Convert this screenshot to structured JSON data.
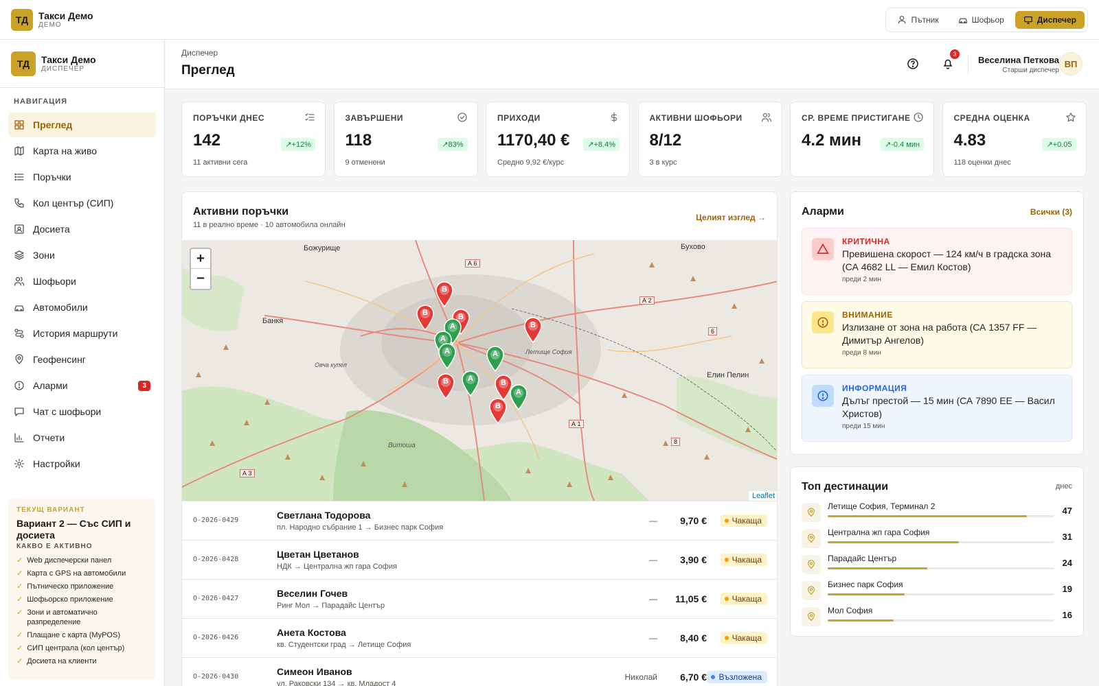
{
  "app": {
    "logo": "ТД",
    "name": "Такси Демо",
    "mode": "ДЕМО"
  },
  "roles": [
    {
      "label": "Пътник",
      "icon": "user-icon"
    },
    {
      "label": "Шофьор",
      "icon": "car-icon"
    },
    {
      "label": "Диспечер",
      "icon": "monitor-icon",
      "active": true
    }
  ],
  "sidebar": {
    "logo": "ТД",
    "name": "Такси Демо",
    "role": "ДИСПЕЧЕР",
    "nav_title": "НАВИГАЦИЯ",
    "items": [
      {
        "label": "Преглед",
        "icon": "grid-icon",
        "active": true
      },
      {
        "label": "Карта на живо",
        "icon": "map-icon"
      },
      {
        "label": "Поръчки",
        "icon": "list-icon"
      },
      {
        "label": "Кол център (СИП)",
        "icon": "phone-icon"
      },
      {
        "label": "Досиета",
        "icon": "id-card-icon"
      },
      {
        "label": "Зони",
        "icon": "layers-icon"
      },
      {
        "label": "Шофьори",
        "icon": "users-icon"
      },
      {
        "label": "Автомобили",
        "icon": "car-icon"
      },
      {
        "label": "История маршрути",
        "icon": "route-icon"
      },
      {
        "label": "Геофенсинг",
        "icon": "pin-icon"
      },
      {
        "label": "Аларми",
        "icon": "alert-circle-icon",
        "badge": "3"
      },
      {
        "label": "Чат с шофьори",
        "icon": "chat-icon"
      },
      {
        "label": "Отчети",
        "icon": "chart-icon"
      },
      {
        "label": "Настройки",
        "icon": "gear-icon"
      }
    ],
    "variant": {
      "label": "ТЕКУЩ ВАРИАНТ",
      "title": "Вариант 2 — Със СИП и досиета",
      "subtitle": "КАКВО Е АКТИВНО",
      "features": [
        "Web диспечерски панел",
        "Карта с GPS на автомобили",
        "Пътническо приложение",
        "Шофьорско приложение",
        "Зони и автоматично разпределение",
        "Плащане с карта (MyPOS)",
        "СИП централа (кол център)",
        "Досиета на клиенти"
      ]
    }
  },
  "header": {
    "breadcrumb": "Диспечер",
    "title": "Преглед",
    "notifications": "3",
    "user_name": "Веселина Петкова",
    "user_role": "Старши диспечер",
    "avatar": "ВП"
  },
  "kpis": [
    {
      "title": "ПОРЪЧКИ ДНЕС",
      "value": "142",
      "delta": "+12%",
      "sub": "11 активни сега",
      "icon": "list-check-icon"
    },
    {
      "title": "ЗАВЪРШЕНИ",
      "value": "118",
      "delta": "83%",
      "sub": "9 отменени",
      "icon": "check-circle-icon"
    },
    {
      "title": "ПРИХОДИ",
      "value": "1170,40 €",
      "delta": "+8.4%",
      "sub": "Средно 9,92 €/курс",
      "icon": "dollar-icon"
    },
    {
      "title": "АКТИВНИ ШОФЬОРИ",
      "value": "8/12",
      "delta": "",
      "sub": "3 в курс",
      "icon": "users-icon"
    },
    {
      "title": "СР. ВРЕМЕ ПРИСТИГАНЕ",
      "value": "4.2 мин",
      "delta": "-0.4 мин",
      "sub": "",
      "icon": "clock-icon"
    },
    {
      "title": "СРЕДНА ОЦЕНКА",
      "value": "4.83",
      "delta": "+0.05",
      "sub": "118 оценки днес",
      "icon": "star-icon"
    }
  ],
  "orders": {
    "title": "Активни поръчки",
    "subtitle": "11 в реално време · 10 автомобила онлайн",
    "link": "Целият изглед →",
    "map": {
      "zoom_in": "+",
      "zoom_out": "−",
      "attribution": "Leaflet",
      "labels": [
        "Божурище",
        "Бухово",
        "Банкя",
        "Елин Пелин",
        "Летище София",
        "Витоша",
        "Овча купел",
        "А 6",
        "А 2",
        "А 1",
        "А 3",
        "6",
        "8"
      ],
      "markers_b": [
        "B",
        "B",
        "B",
        "B",
        "B",
        "B",
        "B"
      ],
      "markers_a": [
        "A",
        "A",
        "A",
        "A",
        "A",
        "A"
      ]
    },
    "rows": [
      {
        "id": "O-2026-0429",
        "name": "Светлана Тодорова",
        "route": "пл. Народно събрание 1 → Бизнес парк София",
        "driver": "—",
        "price": "9,70 €",
        "status": "Чакаща",
        "kind": "wait"
      },
      {
        "id": "O-2026-0428",
        "name": "Цветан Цветанов",
        "route": "НДК → Централна жп гара София",
        "driver": "—",
        "price": "3,90 €",
        "status": "Чакаща",
        "kind": "wait"
      },
      {
        "id": "O-2026-0427",
        "name": "Веселин Гочев",
        "route": "Ринг Мол → Парадайс Център",
        "driver": "—",
        "price": "11,05 €",
        "status": "Чакаща",
        "kind": "wait"
      },
      {
        "id": "O-2026-0426",
        "name": "Анета Костова",
        "route": "кв. Студентски град → Летище София",
        "driver": "—",
        "price": "8,40 €",
        "status": "Чакаща",
        "kind": "wait"
      },
      {
        "id": "O-2026-0430",
        "name": "Симеон Иванов",
        "route": "ул. Раковски 134 → кв. Младост 4",
        "driver": "Николай",
        "price": "6,70 €",
        "status": "Възложена",
        "kind": "acc"
      }
    ]
  },
  "alarms": {
    "title": "Аларми",
    "link": "Всички (3)",
    "items": [
      {
        "level": "КРИТИЧНА",
        "text": "Превишена скорост — 124 км/ч в градска зона (СА 4682 LL — Емил Костов)",
        "time": "преди 2 мин",
        "kind": "crit",
        "color": "#dc2626"
      },
      {
        "level": "ВНИМАНИЕ",
        "text": "Излизане от зона на работа (СА 1357 FF — Димитър Ангелов)",
        "time": "преди 8 мин",
        "kind": "warn",
        "color": "#a16207"
      },
      {
        "level": "ИНФОРМАЦИЯ",
        "text": "Дълъг престой — 15 мин (СА 7890 ЕЕ — Васил Христов)",
        "time": "преди 15 мин",
        "kind": "info",
        "color": "#2563eb"
      }
    ]
  },
  "destinations": {
    "title": "Топ дестинации",
    "period": "днес",
    "items": [
      {
        "name": "Летище София, Терминал 2",
        "count": "47",
        "share": 0.88
      },
      {
        "name": "Централна жп гара София",
        "count": "31",
        "share": 0.58
      },
      {
        "name": "Парадайс Център",
        "count": "24",
        "share": 0.44
      },
      {
        "name": "Бизнес парк София",
        "count": "19",
        "share": 0.34
      },
      {
        "name": "Мол София",
        "count": "16",
        "share": 0.29
      }
    ]
  },
  "colors": {
    "accent": "#c9a227",
    "red_marker": "#e53935",
    "green_marker": "#2e9e4f"
  }
}
